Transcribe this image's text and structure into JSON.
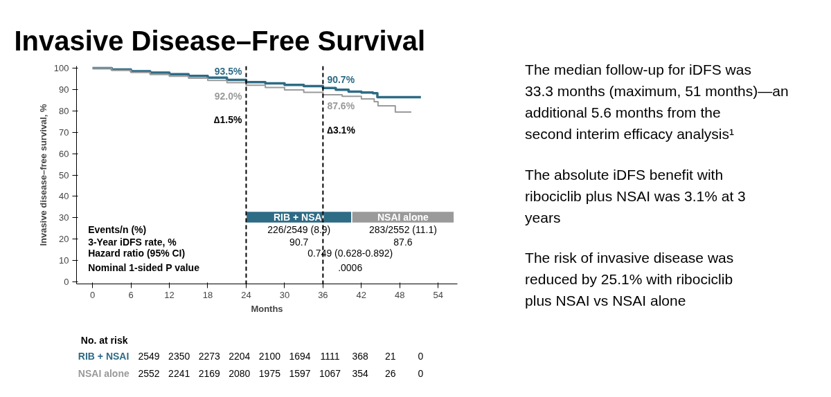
{
  "chart_data": [
    {
      "type": "step",
      "title": "Invasive Disease–Free Survival",
      "xlabel": "Months",
      "ylabel": "Invasive disease–free survival, %",
      "xlim": [
        -2.5,
        57
      ],
      "ylim": [
        -1,
        101
      ],
      "xticks": [
        0,
        6,
        12,
        18,
        24,
        30,
        36,
        42,
        48,
        54
      ],
      "yticks": [
        0,
        10,
        20,
        30,
        40,
        50,
        60,
        70,
        80,
        90,
        100
      ],
      "legend": false,
      "grid": false,
      "series": [
        {
          "name": "RIB + NSAI",
          "color": "#2e6b85",
          "x": [
            0,
            3,
            6,
            9,
            12,
            15,
            18,
            21,
            24,
            27,
            30,
            33,
            36,
            38,
            40,
            42,
            43.8,
            44.5,
            51.3
          ],
          "values": [
            100,
            99.4,
            98.6,
            97.9,
            97.2,
            96.4,
            95.6,
            94.5,
            93.5,
            92.9,
            92.2,
            91.6,
            90.7,
            89.9,
            89.0,
            88.6,
            88.3,
            86.4,
            86.4
          ]
        },
        {
          "name": "NSAI alone",
          "color": "#9a9a9a",
          "x": [
            0,
            3,
            6,
            9,
            12,
            15,
            18,
            21,
            24,
            27,
            30,
            33,
            36,
            39,
            42,
            44,
            44.6,
            47.2,
            47.3,
            49.8
          ],
          "values": [
            100,
            99.0,
            98.0,
            97.0,
            96.2,
            95.3,
            94.3,
            93.2,
            92.0,
            91.0,
            89.8,
            88.7,
            87.6,
            86.8,
            85.6,
            84.3,
            82.4,
            82.4,
            79.5,
            79.5
          ]
        }
      ],
      "ref_lines": [
        {
          "axis": "x",
          "value": 24,
          "line_style": "dashed",
          "color": "#000000"
        },
        {
          "axis": "x",
          "value": 36,
          "line_style": "dashed",
          "color": "#000000"
        }
      ],
      "annotations": [
        "93.5%",
        "92.0%",
        "90.7%",
        "87.6%",
        "∆1.5%",
        "∆3.1%",
        "Events/n (%)",
        "226/2549 (8.9)",
        "283/2552 (11.1)",
        "3-Year iDFS rate, %",
        "90.7",
        "87.6",
        "Hazard ratio (95% CI)",
        "0.749 (0.628-0.892)",
        "Nominal 1-sided P value",
        ".0006",
        "No. at risk",
        "2549",
        "2350",
        "2273",
        "2204",
        "2100",
        "1694",
        "1111",
        "368",
        "21",
        "0",
        "2552",
        "2241",
        "2169",
        "2080",
        "1975",
        "1597",
        "1067",
        "354",
        "26",
        "0"
      ]
    },
    {
      "type": "other",
      "annotations": [
        "The median follow-up for iDFS was 33.3 months (maximum, 51 months)—an additional 5.6 months from the second interim efficacy analysis¹",
        "The absolute iDFS benefit with ribociclib plus NSAI was 3.1% at 3 years",
        "The risk of invasive disease was reduced by 25.1% with ribociclib plus NSAI vs NSAI alone"
      ]
    }
  ]
}
